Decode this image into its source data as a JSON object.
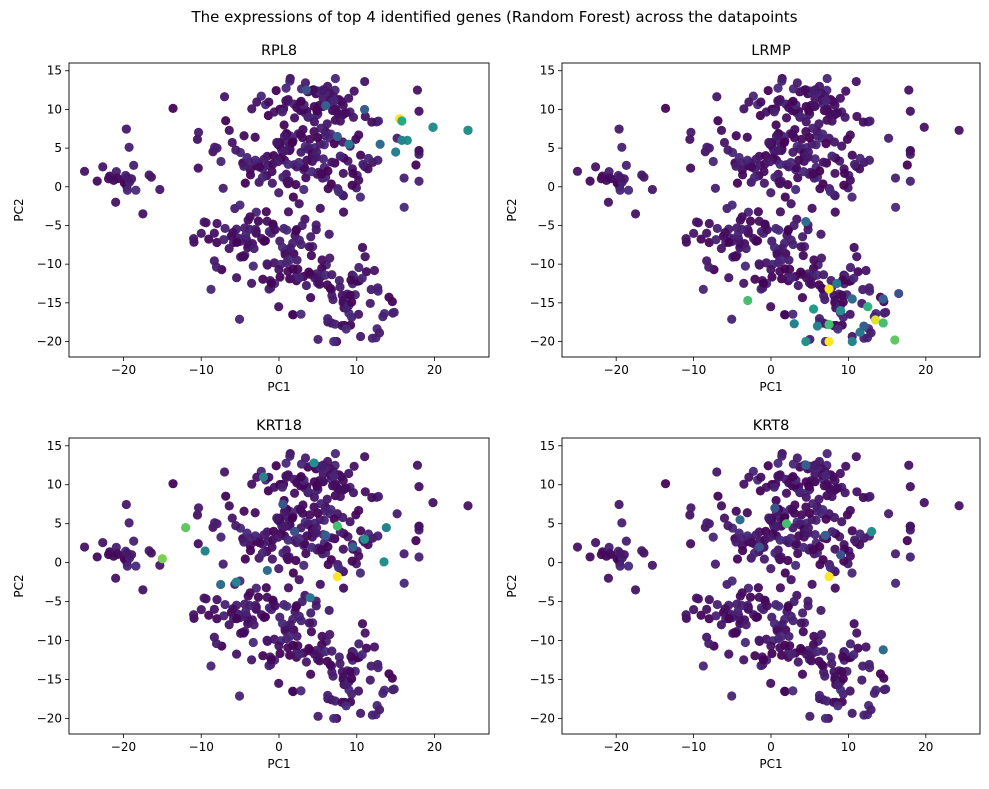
{
  "figure": {
    "title": "The expressions of top 4 identified genes (Random Forest) across the datapoints"
  },
  "chart_data": [
    {
      "type": "scatter",
      "title": "RPL8",
      "xlabel": "PC1",
      "ylabel": "PC2",
      "xlim": [
        -27,
        27
      ],
      "ylim": [
        -22,
        16
      ],
      "xticks": [
        -20,
        -10,
        0,
        10,
        20
      ],
      "yticks": [
        -20,
        -15,
        -10,
        -5,
        0,
        5,
        10,
        15
      ],
      "colormap": "viridis",
      "highlight_points": [
        {
          "x": 15.5,
          "y": 8.8,
          "level": 1.0
        },
        {
          "x": 15.8,
          "y": 8.5,
          "level": 0.6
        },
        {
          "x": 16.5,
          "y": 6.0,
          "level": 0.5
        },
        {
          "x": 15.8,
          "y": 6.0,
          "level": 0.45
        },
        {
          "x": 15.0,
          "y": 4.5,
          "level": 0.45
        },
        {
          "x": 19.8,
          "y": 7.7,
          "level": 0.5
        },
        {
          "x": 24.3,
          "y": 7.3,
          "level": 0.5
        },
        {
          "x": 13.0,
          "y": 5.5,
          "level": 0.35
        },
        {
          "x": 9.0,
          "y": 5.5,
          "level": 0.4
        },
        {
          "x": 7.5,
          "y": 6.5,
          "level": 0.3
        },
        {
          "x": 11.0,
          "y": 10.0,
          "level": 0.3
        },
        {
          "x": 6.0,
          "y": 10.5,
          "level": 0.3
        },
        {
          "x": 3.5,
          "y": 12.5,
          "level": 0.25
        }
      ]
    },
    {
      "type": "scatter",
      "title": "LRMP",
      "xlabel": "PC1",
      "ylabel": "PC2",
      "xlim": [
        -27,
        27
      ],
      "ylim": [
        -22,
        16
      ],
      "xticks": [
        -20,
        -10,
        0,
        10,
        20
      ],
      "yticks": [
        -20,
        -15,
        -10,
        -5,
        0,
        5,
        10,
        15
      ],
      "colormap": "viridis",
      "highlight_points": [
        {
          "x": 7.5,
          "y": -13.2,
          "level": 1.0
        },
        {
          "x": 7.5,
          "y": -20.0,
          "level": 1.0
        },
        {
          "x": 13.5,
          "y": -17.2,
          "level": 0.95
        },
        {
          "x": 16.0,
          "y": -19.8,
          "level": 0.75
        },
        {
          "x": -3.0,
          "y": -14.7,
          "level": 0.7
        },
        {
          "x": 7.5,
          "y": -17.8,
          "level": 0.7
        },
        {
          "x": 14.5,
          "y": -17.6,
          "level": 0.7
        },
        {
          "x": 12.5,
          "y": -15.5,
          "level": 0.65
        },
        {
          "x": 5.5,
          "y": -15.8,
          "level": 0.55
        },
        {
          "x": 9.0,
          "y": -16.0,
          "level": 0.5
        },
        {
          "x": 3.0,
          "y": -17.7,
          "level": 0.45
        },
        {
          "x": 4.5,
          "y": -20.0,
          "level": 0.5
        },
        {
          "x": 10.5,
          "y": -20.0,
          "level": 0.45
        },
        {
          "x": 6.0,
          "y": -18.0,
          "level": 0.45
        },
        {
          "x": 11.5,
          "y": -18.8,
          "level": 0.4
        },
        {
          "x": 8.5,
          "y": -12.5,
          "level": 0.4
        },
        {
          "x": 4.5,
          "y": -4.5,
          "level": 0.35
        },
        {
          "x": 10.5,
          "y": -14.5,
          "level": 0.35
        },
        {
          "x": 14.5,
          "y": -14.5,
          "level": 0.3
        },
        {
          "x": 12.0,
          "y": -18.0,
          "level": 0.3
        },
        {
          "x": 16.5,
          "y": -13.8,
          "level": 0.25
        }
      ]
    },
    {
      "type": "scatter",
      "title": "KRT18",
      "xlabel": "PC1",
      "ylabel": "PC2",
      "xlim": [
        -27,
        27
      ],
      "ylim": [
        -22,
        16
      ],
      "xticks": [
        -20,
        -10,
        0,
        10,
        20
      ],
      "yticks": [
        -20,
        -15,
        -10,
        -5,
        0,
        5,
        10,
        15
      ],
      "colormap": "viridis",
      "highlight_points": [
        {
          "x": 7.5,
          "y": -1.8,
          "level": 1.0
        },
        {
          "x": -15.0,
          "y": 0.5,
          "level": 0.8
        },
        {
          "x": -12.0,
          "y": 4.5,
          "level": 0.75
        },
        {
          "x": 7.5,
          "y": 4.7,
          "level": 0.7
        },
        {
          "x": 11.0,
          "y": 3.0,
          "level": 0.5
        },
        {
          "x": 13.5,
          "y": 0.1,
          "level": 0.5
        },
        {
          "x": 13.8,
          "y": 4.5,
          "level": 0.45
        },
        {
          "x": 4.5,
          "y": 12.8,
          "level": 0.5
        },
        {
          "x": -2.0,
          "y": 11.0,
          "level": 0.45
        },
        {
          "x": -5.5,
          "y": -2.5,
          "level": 0.45
        },
        {
          "x": -9.5,
          "y": 1.5,
          "level": 0.45
        },
        {
          "x": -7.5,
          "y": -2.8,
          "level": 0.35
        },
        {
          "x": 4.0,
          "y": -4.5,
          "level": 0.4
        },
        {
          "x": -1.5,
          "y": -1.0,
          "level": 0.35
        },
        {
          "x": 6.0,
          "y": 3.5,
          "level": 0.3
        },
        {
          "x": 9.5,
          "y": 2.0,
          "level": 0.3
        },
        {
          "x": 2.0,
          "y": 4.0,
          "level": 0.25
        },
        {
          "x": 0.5,
          "y": 7.5,
          "level": 0.25
        }
      ]
    },
    {
      "type": "scatter",
      "title": "KRT8",
      "xlabel": "PC1",
      "ylabel": "PC2",
      "xlim": [
        -27,
        27
      ],
      "ylim": [
        -22,
        16
      ],
      "xticks": [
        -20,
        -10,
        0,
        10,
        20
      ],
      "yticks": [
        -20,
        -15,
        -10,
        -5,
        0,
        5,
        10,
        15
      ],
      "colormap": "viridis",
      "highlight_points": [
        {
          "x": 7.5,
          "y": -1.8,
          "level": 1.0
        },
        {
          "x": 2.0,
          "y": 5.0,
          "level": 0.7
        },
        {
          "x": 13.0,
          "y": 4.0,
          "level": 0.5
        },
        {
          "x": 14.5,
          "y": -11.2,
          "level": 0.35
        },
        {
          "x": -4.0,
          "y": 5.5,
          "level": 0.35
        },
        {
          "x": 4.5,
          "y": 12.5,
          "level": 0.3
        },
        {
          "x": 7.0,
          "y": 3.5,
          "level": 0.3
        },
        {
          "x": 9.0,
          "y": 1.0,
          "level": 0.25
        },
        {
          "x": 0.5,
          "y": 7.0,
          "level": 0.25
        },
        {
          "x": -1.5,
          "y": 2.0,
          "level": 0.25
        }
      ]
    }
  ]
}
